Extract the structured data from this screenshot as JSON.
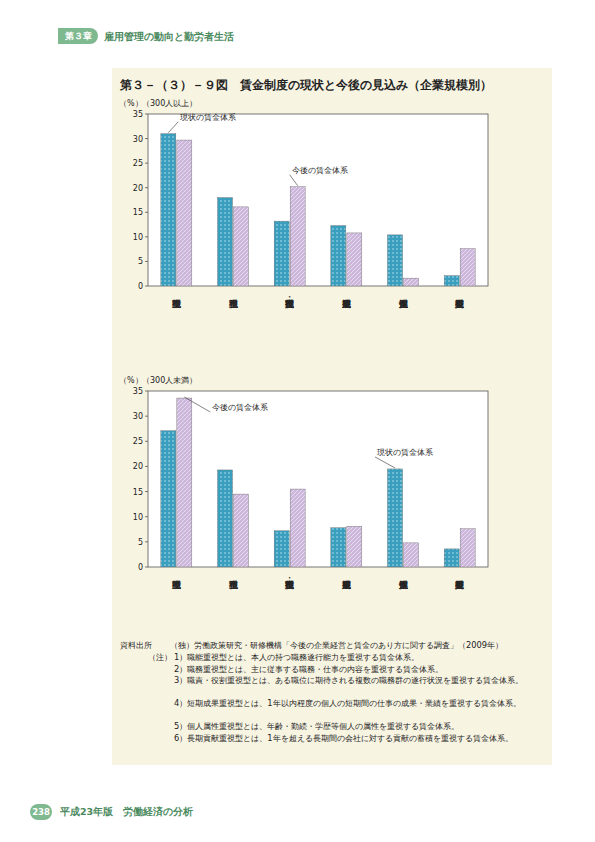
{
  "header": {
    "chapter": "第３章",
    "title": "雇用管理の動向と勤労者生活"
  },
  "figure_title": "第３－（３）－９図　賃金制度の現状と今後の見込み（企業規模別）",
  "chart_data": [
    {
      "type": "bar",
      "subtitle": "（300人以上）",
      "y_label": "（%）",
      "categories": [
        "職能重視型",
        "職務重視型",
        "職責・役割重視型",
        "短期成果重視型",
        "個人属性重視型",
        "長期貢献重視型"
      ],
      "series": [
        {
          "name": "現状の賃金体系",
          "color": "#3a9fbf",
          "values": [
            31.0,
            18.0,
            13.2,
            12.3,
            10.4,
            2.1
          ]
        },
        {
          "name": "今後の賃金体系",
          "color": "#cdb6dc",
          "values": [
            29.7,
            16.1,
            20.2,
            10.8,
            1.6,
            7.6
          ]
        }
      ],
      "ylim": [
        0,
        35
      ],
      "yticks": [
        0,
        5,
        10,
        15,
        20,
        25,
        30,
        35
      ],
      "grid": false
    },
    {
      "type": "bar",
      "subtitle": "（300人未満）",
      "y_label": "（%）",
      "categories": [
        "職能重視型",
        "職務重視型",
        "職責・役割重視型",
        "短期成果重視型",
        "個人属性重視型",
        "長期貢献重視型"
      ],
      "series": [
        {
          "name": "現状の賃金体系",
          "color": "#3a9fbf",
          "values": [
            27.1,
            19.3,
            7.2,
            7.8,
            19.5,
            3.6
          ]
        },
        {
          "name": "今後の賃金体系",
          "color": "#cdb6dc",
          "values": [
            33.6,
            14.5,
            15.5,
            8.1,
            4.8,
            7.6
          ]
        }
      ],
      "ylim": [
        0,
        35
      ],
      "yticks": [
        0,
        5,
        10,
        15,
        20,
        25,
        30,
        35
      ],
      "grid": false
    }
  ],
  "source": {
    "label": "資料出所",
    "text": "（独）労働政策研究・研修機構「今後の企業経営と賃金のあり方に関する調査」（2009年）"
  },
  "notes": {
    "label": "（注）",
    "items": [
      "1）職能重視型とは、本人の持つ職務遂行能力を重視する賃金体系。",
      "2）職務重視型とは、主に従事する職務・仕事の内容を重視する賃金体系。",
      "3）職責・役割重視型とは、ある職位に期待される複数の職務群の遂行状況を重視する賃金体系。",
      "4）短期成果重視型とは、1年以内程度の個人の短期間の仕事の成果・業績を重視する賃金体系。",
      "5）個人属性重視型とは、年齢・勤続・学歴等個人の属性を重視する賃金体系。",
      "6）長期貢献重視型とは、1年を超える長期間の会社に対する貢献の蓄積を重視する賃金体系。"
    ]
  },
  "footer": {
    "page": "238",
    "title": "平成23年版　労働経済の分析"
  }
}
